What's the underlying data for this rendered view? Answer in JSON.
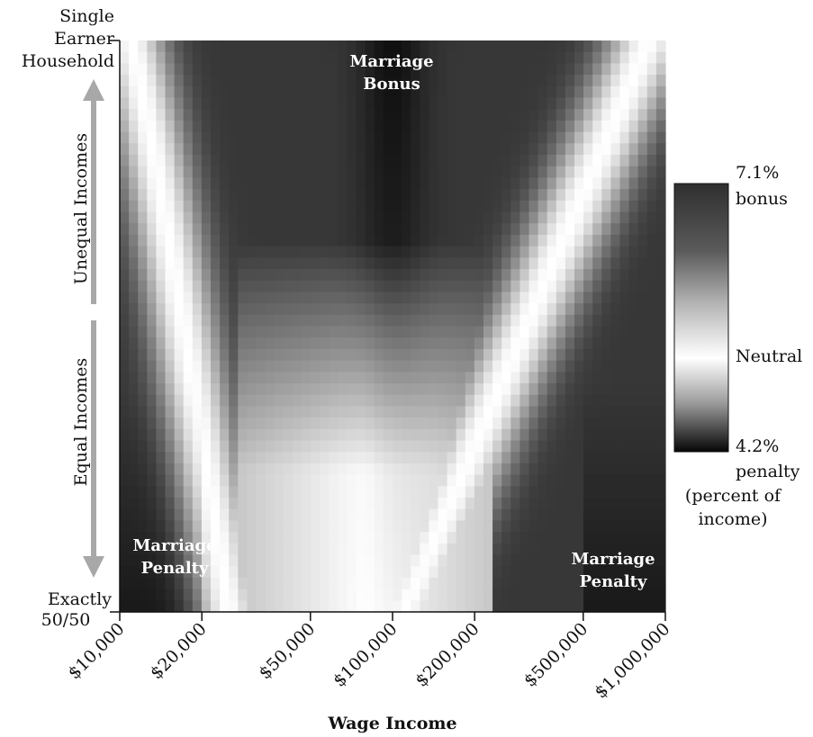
{
  "chart_data": {
    "type": "heatmap",
    "title": "",
    "xlabel": "Wage Income",
    "x_scale": "log",
    "x_ticks": [
      "$10,000",
      "$20,000",
      "$50,000",
      "$100,000",
      "$200,000",
      "$500,000",
      "$1,000,000"
    ],
    "x_tick_values": [
      10000,
      20000,
      50000,
      100000,
      200000,
      500000,
      1000000
    ],
    "y_axis": {
      "top_label": "Single Earner Household",
      "bottom_label": "Exactly 50/50",
      "upper_arrow_label": "Unequal Incomes",
      "lower_arrow_label": "Equal Incomes"
    },
    "annotations": [
      {
        "text": "Marriage Bonus",
        "region": "top-center"
      },
      {
        "text": "Marriage Penalty",
        "region": "bottom-left"
      },
      {
        "text": "Marriage Penalty",
        "region": "bottom-right"
      }
    ],
    "colorbar": {
      "max_label": "7.1%",
      "max_sublabel": "bonus",
      "mid_label": "Neutral",
      "min_label": "4.2%",
      "min_sublabel": "penalty",
      "units_label": "(percent of income)",
      "max_value": 7.1,
      "min_value": -4.2,
      "neutral_value": 0
    },
    "colors": {
      "bonus_dark": "#2a2a2a",
      "neutral": "#ffffff",
      "penalty_dark": "#0a0a0a",
      "arrow": "#a8a8a8"
    }
  }
}
